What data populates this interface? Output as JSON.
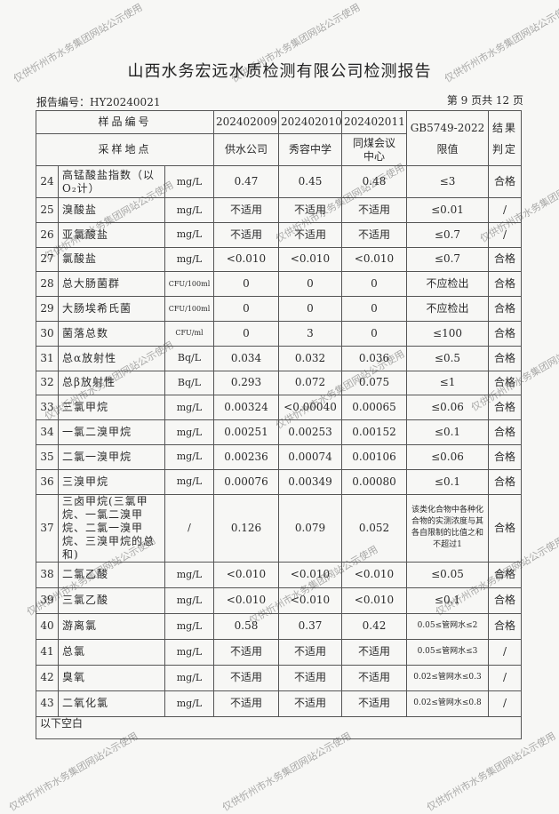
{
  "title": "山西水务宏远水质检测有限公司检测报告",
  "report_no": "报告编号：HY20240021",
  "page_info": "第 9 页共 12 页",
  "header": {
    "sample_no_label": "样品编号",
    "site_label": "采样地点",
    "samples": [
      "202402009",
      "202402010",
      "202402011"
    ],
    "sites": [
      "供水公司",
      "秀容中学",
      "同煤会议中心"
    ],
    "limit_label": "GB5749-2022 限值",
    "result_label": "结果判定"
  },
  "rows": [
    {
      "no": "24",
      "name": "高锰酸盐指数（以O₂计）",
      "unit": "mg/L",
      "v": [
        "0.47",
        "0.45",
        "0.48"
      ],
      "limit": "≤3",
      "result": "合格"
    },
    {
      "no": "25",
      "name": "溴酸盐",
      "unit": "mg/L",
      "v": [
        "不适用",
        "不适用",
        "不适用"
      ],
      "limit": "≤0.01",
      "result": "/"
    },
    {
      "no": "26",
      "name": "亚氯酸盐",
      "unit": "mg/L",
      "v": [
        "不适用",
        "不适用",
        "不适用"
      ],
      "limit": "≤0.7",
      "result": "/"
    },
    {
      "no": "27",
      "name": "氯酸盐",
      "unit": "mg/L",
      "v": [
        "<0.010",
        "<0.010",
        "<0.010"
      ],
      "limit": "≤0.7",
      "result": "合格"
    },
    {
      "no": "28",
      "name": "总大肠菌群",
      "unit": "CFU/100ml",
      "v": [
        "0",
        "0",
        "0"
      ],
      "limit": "不应检出",
      "result": "合格"
    },
    {
      "no": "29",
      "name": "大肠埃希氏菌",
      "unit": "CFU/100ml",
      "v": [
        "0",
        "0",
        "0"
      ],
      "limit": "不应检出",
      "result": "合格"
    },
    {
      "no": "30",
      "name": "菌落总数",
      "unit": "CFU/ml",
      "v": [
        "0",
        "3",
        "0"
      ],
      "limit": "≤100",
      "result": "合格"
    },
    {
      "no": "31",
      "name": "总α放射性",
      "unit": "Bq/L",
      "v": [
        "0.034",
        "0.032",
        "0.036"
      ],
      "limit": "≤0.5",
      "result": "合格"
    },
    {
      "no": "32",
      "name": "总β放射性",
      "unit": "Bq/L",
      "v": [
        "0.293",
        "0.072",
        "0.075"
      ],
      "limit": "≤1",
      "result": "合格"
    },
    {
      "no": "33",
      "name": "三氯甲烷",
      "unit": "mg/L",
      "v": [
        "0.00324",
        "<0.00040",
        "0.00065"
      ],
      "limit": "≤0.06",
      "result": "合格"
    },
    {
      "no": "34",
      "name": "一氯二溴甲烷",
      "unit": "mg/L",
      "v": [
        "0.00251",
        "0.00253",
        "0.00152"
      ],
      "limit": "≤0.1",
      "result": "合格"
    },
    {
      "no": "35",
      "name": "二氯一溴甲烷",
      "unit": "mg/L",
      "v": [
        "0.00236",
        "0.00074",
        "0.00106"
      ],
      "limit": "≤0.06",
      "result": "合格"
    },
    {
      "no": "36",
      "name": "三溴甲烷",
      "unit": "mg/L",
      "v": [
        "0.00076",
        "0.00349",
        "0.00080"
      ],
      "limit": "≤0.1",
      "result": "合格"
    },
    {
      "no": "37",
      "name": "三卤甲烷(三氯甲烷、一氯二溴甲烷、二氯一溴甲烷、三溴甲烷的总和)",
      "unit": "/",
      "v": [
        "0.126",
        "0.079",
        "0.052"
      ],
      "limit": "该类化合物中各种化合物的实测浓度与其各自限制的比值之和不超过1",
      "result": "合格"
    },
    {
      "no": "38",
      "name": "二氯乙酸",
      "unit": "mg/L",
      "v": [
        "<0.010",
        "<0.010",
        "<0.010"
      ],
      "limit": "≤0.05",
      "result": "合格"
    },
    {
      "no": "39",
      "name": "三氯乙酸",
      "unit": "mg/L",
      "v": [
        "<0.010",
        "<0.010",
        "<0.010"
      ],
      "limit": "≤0.1",
      "result": "合格"
    },
    {
      "no": "40",
      "name": "游离氯",
      "unit": "mg/L",
      "v": [
        "0.58",
        "0.37",
        "0.42"
      ],
      "limit": "0.05≤管网水≤2",
      "result": "合格"
    },
    {
      "no": "41",
      "name": "总氯",
      "unit": "mg/L",
      "v": [
        "不适用",
        "不适用",
        "不适用"
      ],
      "limit": "0.05≤管网水≤3",
      "result": "/"
    },
    {
      "no": "42",
      "name": "臭氧",
      "unit": "mg/L",
      "v": [
        "不适用",
        "不适用",
        "不适用"
      ],
      "limit": "0.02≤管网水≤0.3",
      "result": "/"
    },
    {
      "no": "43",
      "name": "二氧化氯",
      "unit": "mg/L",
      "v": [
        "不适用",
        "不适用",
        "不适用"
      ],
      "limit": "0.02≤管网水≤0.8",
      "result": "/"
    }
  ],
  "footer_note": "以下空白",
  "watermark": "仅供忻州市水务集团网站公示使用"
}
